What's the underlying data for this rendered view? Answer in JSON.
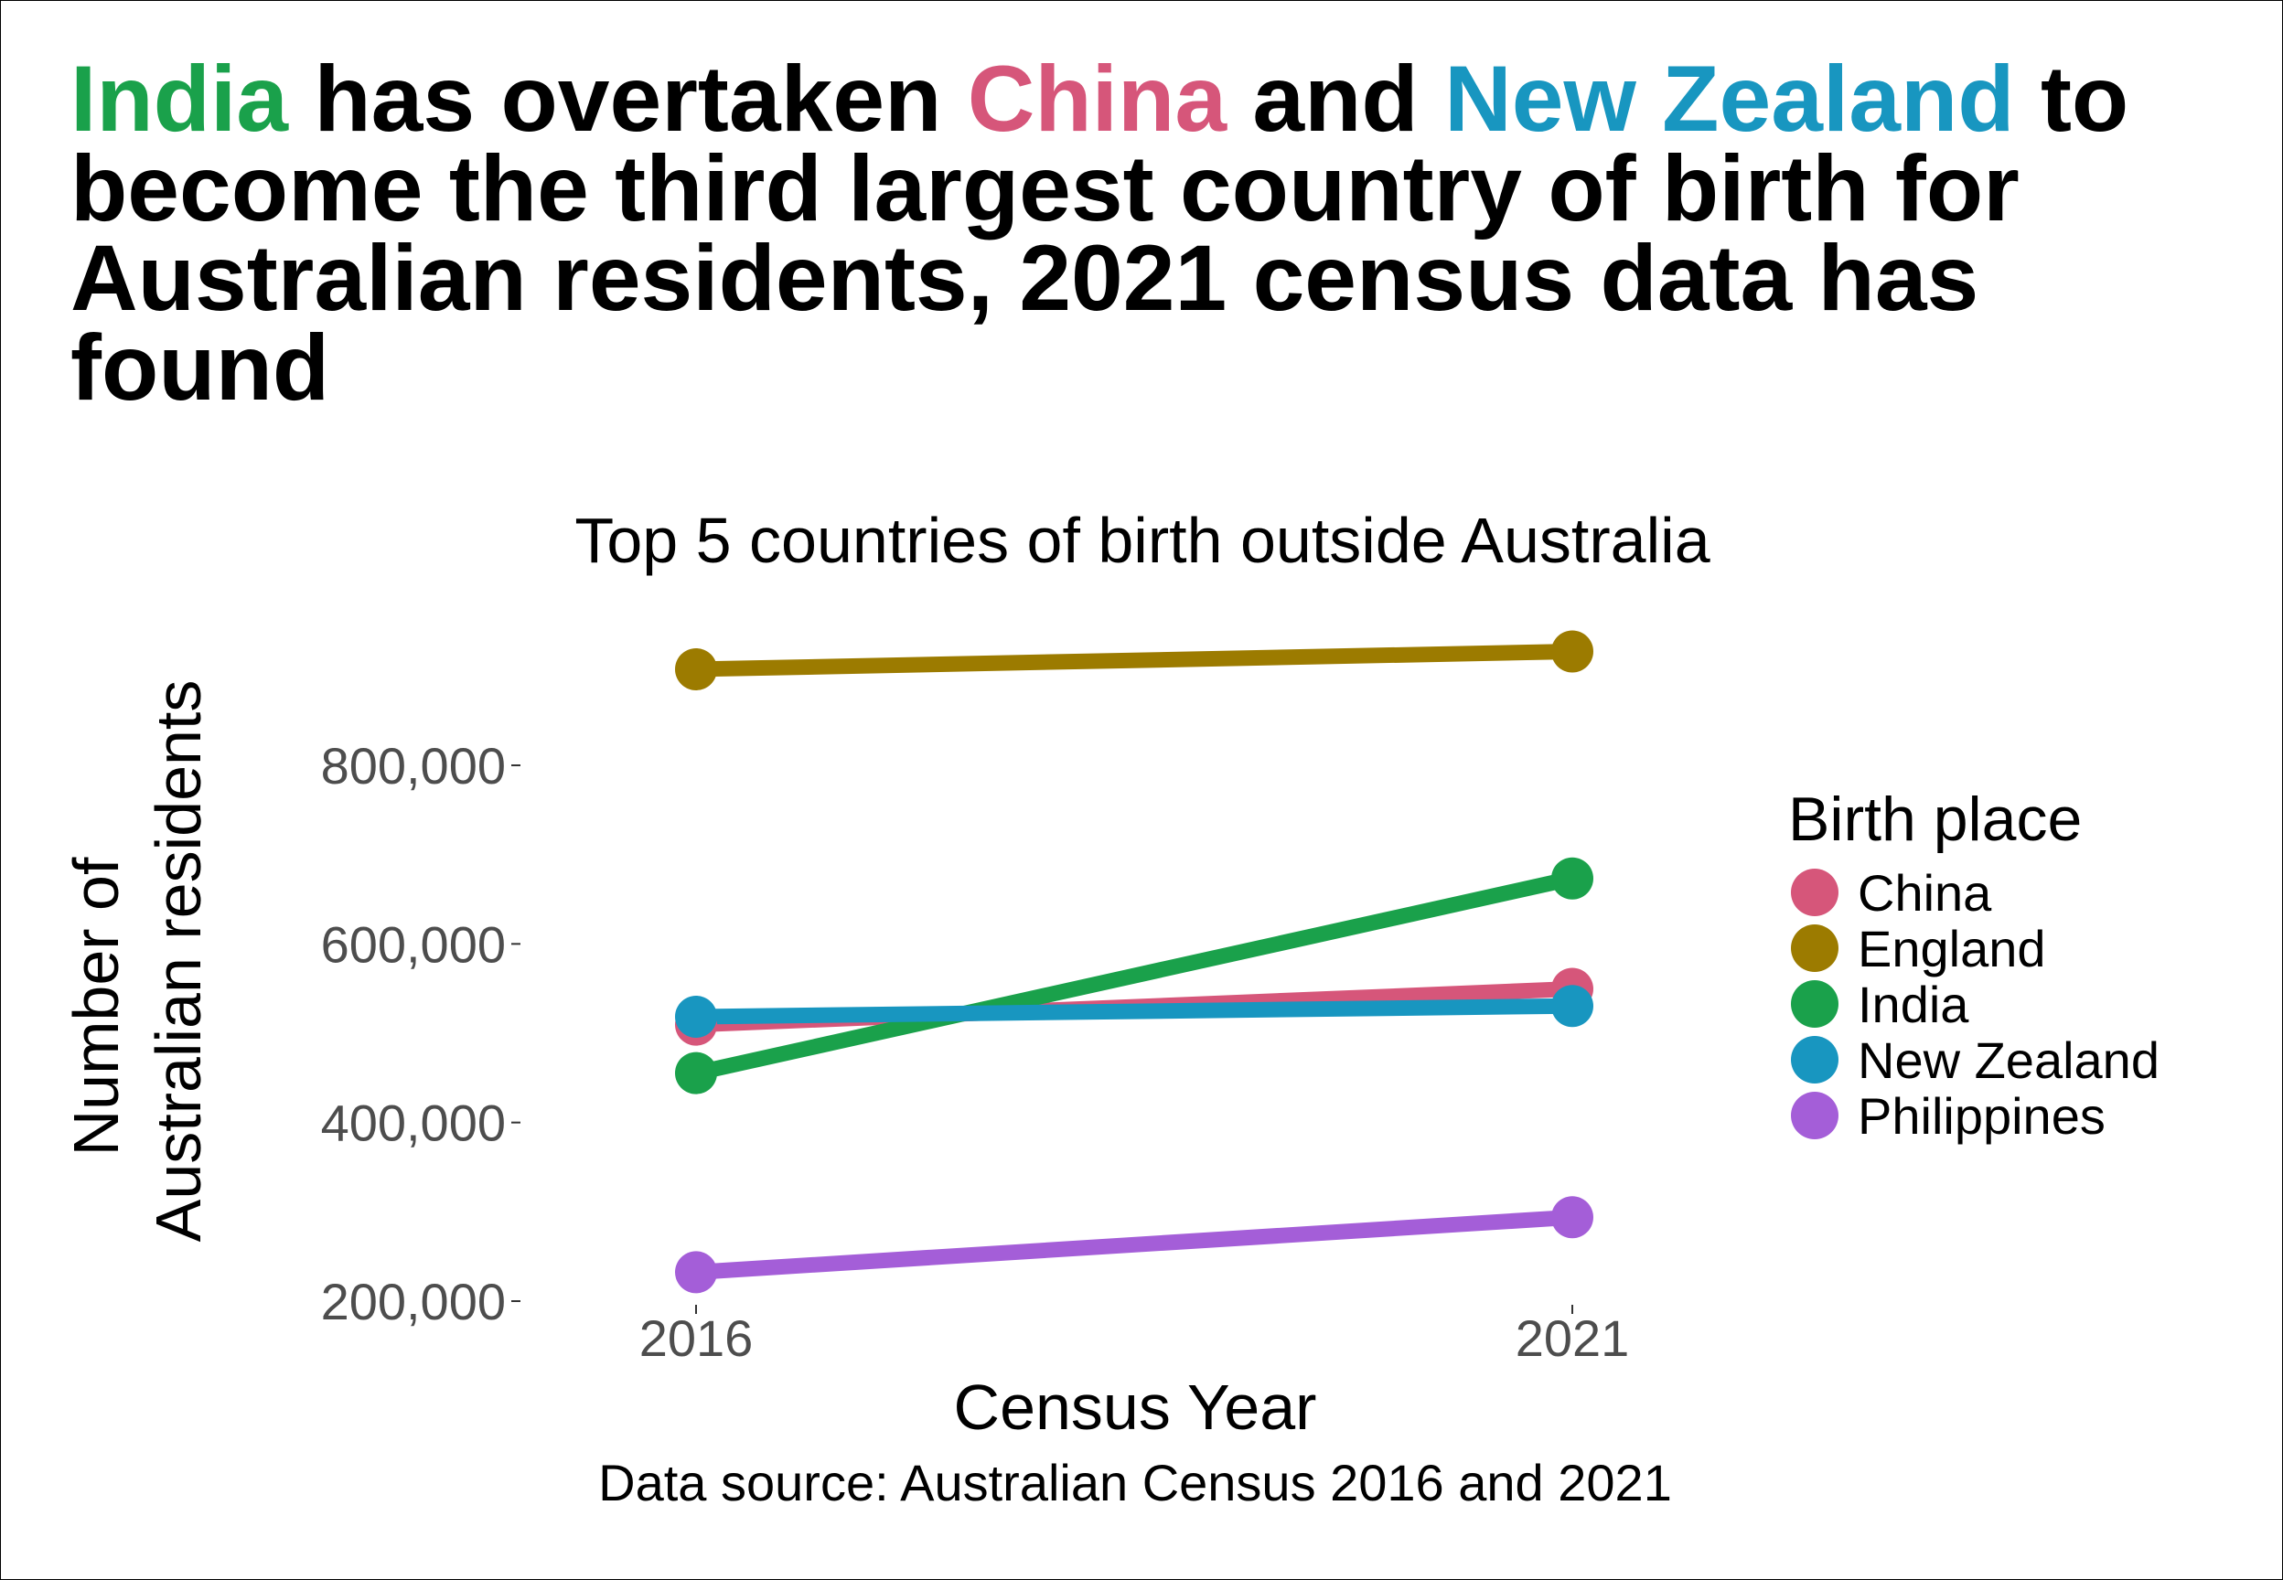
{
  "headline": {
    "segments": [
      {
        "text": "India",
        "color": "#1aa14b"
      },
      {
        "text": " has overtaken ",
        "color": "#000000"
      },
      {
        "text": "China",
        "color": "#d6567a"
      },
      {
        "text": " and ",
        "color": "#000000"
      },
      {
        "text": "New Zealand",
        "color": "#1896c0"
      },
      {
        "text": " to become the third largest country of birth for Australian residents, 2021 census data has found",
        "color": "#000000"
      }
    ]
  },
  "chart_data": {
    "type": "line",
    "title": "Top 5 countries of birth outside Australia",
    "xlabel": "Census Year",
    "ylabel_lines": [
      "Number of",
      "Australian residents"
    ],
    "x": [
      2016,
      2021
    ],
    "x_ticks": [
      "2016",
      "2021"
    ],
    "y_ticks": [
      200000,
      400000,
      600000,
      800000
    ],
    "y_tick_labels": [
      "200,000",
      "400,000",
      "600,000",
      "800,000"
    ],
    "ylim": [
      200000,
      930000
    ],
    "grid": false,
    "legend": {
      "title": "Birth place",
      "position": "right"
    },
    "series": [
      {
        "name": "China",
        "color": "#d6567a",
        "values": [
          509555,
          549618
        ]
      },
      {
        "name": "England",
        "color": "#9c7b00",
        "values": [
          907570,
          927490
        ]
      },
      {
        "name": "India",
        "color": "#1aa14b",
        "values": [
          455389,
          673352
        ]
      },
      {
        "name": "New Zealand",
        "color": "#1896c0",
        "values": [
          518466,
          530492
        ]
      },
      {
        "name": "Philippines",
        "color": "#a45ed8",
        "values": [
          232386,
          293892
        ]
      }
    ],
    "caption": "Data source: Australian Census 2016 and 2021"
  }
}
